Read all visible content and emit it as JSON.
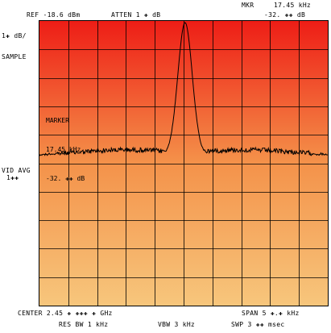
{
  "header": {
    "ref": "REF -18.6 dBm",
    "atten": "ATTEN 1 ✚ dB",
    "mkr_label": "MKR",
    "mkr_freq": "17.45 kHz",
    "mkr_level": "-32. ✚✚ dB"
  },
  "left_panel": {
    "scale": "1✚ dB/",
    "mode": "SAMPLE",
    "vid_avg": "VID AVG",
    "vid_avg_value": "1✚✚"
  },
  "marker_readout": {
    "title": "MARKER",
    "freq": "17.45 kHz",
    "level": "-32. ✚✚ dB"
  },
  "footer": {
    "center": "CENTER 2.45 ✚ ✚✚✚ ✚ GHz",
    "span": "SPAN 5 ✚.✚ kHz",
    "res_bw": "RES BW 1 kHz",
    "vbw": "VBW 3 kHz",
    "swp": "SWP 3 ✚✚ msec"
  },
  "colors": {
    "gradient_top": "#ee1d16",
    "gradient_mid": "#f4924a",
    "gradient_bottom": "#f7c67c",
    "trace": "#000000",
    "grid": "#000000"
  },
  "chart_data": {
    "type": "line",
    "grid_divisions": {
      "x": 10,
      "y": 10
    },
    "noise_floor_div": 4.7,
    "peak_center_frac": 0.505,
    "peak_level_div": 0.0,
    "peak_width_frac": 0.065
  }
}
